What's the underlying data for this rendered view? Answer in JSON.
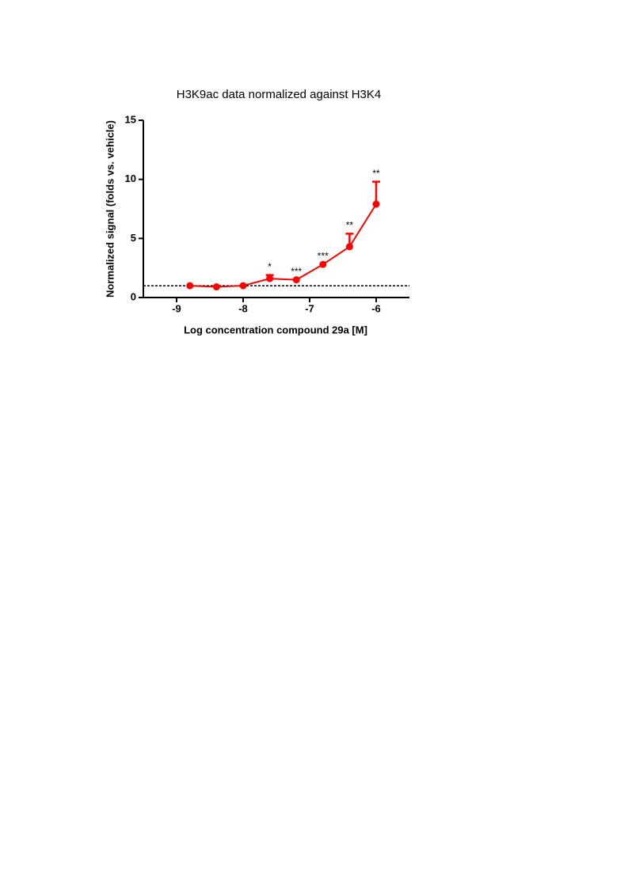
{
  "chart_data": {
    "type": "line",
    "title": "H3K9ac data normalized against H3K4",
    "x_label": "Log concentration compound 29a [M]",
    "y_label": "Normalized signal (folds vs. vehicle)",
    "x": [
      -8.8,
      -8.4,
      -8.0,
      -7.6,
      -7.2,
      -6.8,
      -6.4,
      -6.0
    ],
    "series": [
      {
        "color": "#ff0000",
        "values": [
          1.0,
          0.9,
          1.0,
          1.6,
          1.5,
          2.8,
          4.3,
          7.9
        ],
        "errors": [
          0,
          0,
          0,
          0.3,
          0,
          0,
          1.1,
          1.9
        ],
        "annotations": [
          null,
          null,
          null,
          "*",
          "***",
          "***",
          "**",
          "**"
        ]
      }
    ],
    "reference_line": 1,
    "xlim": [
      -9.5,
      -5.5
    ],
    "xticks": [
      -9,
      -8,
      -7,
      -6
    ],
    "ylim": [
      0,
      15
    ],
    "yticks": [
      0,
      5,
      10,
      15
    ]
  }
}
